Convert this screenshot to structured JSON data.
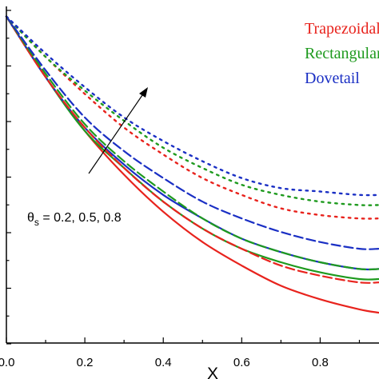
{
  "chart_data": {
    "type": "line",
    "xlabel": "X",
    "ylabel": "",
    "xlim": [
      0.0,
      0.95
    ],
    "ylim": [
      0.0,
      1.0
    ],
    "x_ticks": [
      "0.0",
      "0.2",
      "0.4",
      "0.6",
      "0.8"
    ],
    "x_tick_values": [
      0.0,
      0.2,
      0.4,
      0.6,
      0.8
    ],
    "y_tick_count": 7,
    "grid": false,
    "legend_position": "top-right",
    "legend": [
      {
        "label": "Trapezoidal",
        "color": "#e8231d"
      },
      {
        "label": "Rectangular",
        "color": "#1e9a1e"
      },
      {
        "label": "Dovetail",
        "color": "#1a2fc4"
      }
    ],
    "annotation": {
      "text_theta": "θ",
      "text_sub": "s",
      "text_rest": " = 0.2, 0.5, 0.8"
    },
    "x": [
      0.0,
      0.1,
      0.2,
      0.3,
      0.4,
      0.5,
      0.6,
      0.7,
      0.8,
      0.9,
      0.95
    ],
    "series": [
      {
        "shape": "Trapezoidal",
        "theta_s": 0.2,
        "style": "solid",
        "color": "#e8231d",
        "values": [
          0.97,
          0.79,
          0.63,
          0.5,
          0.39,
          0.3,
          0.23,
          0.17,
          0.13,
          0.1,
          0.09
        ]
      },
      {
        "shape": "Rectangular",
        "theta_s": 0.2,
        "style": "solid",
        "color": "#1e9a1e",
        "values": [
          0.97,
          0.79,
          0.63,
          0.52,
          0.42,
          0.34,
          0.28,
          0.24,
          0.21,
          0.19,
          0.19
        ]
      },
      {
        "shape": "Dovetail",
        "theta_s": 0.2,
        "style": "solid",
        "color": "#1a2fc4",
        "values": [
          0.97,
          0.79,
          0.64,
          0.53,
          0.44,
          0.37,
          0.31,
          0.27,
          0.24,
          0.22,
          0.22
        ]
      },
      {
        "shape": "Trapezoidal",
        "theta_s": 0.5,
        "style": "dashed",
        "color": "#e8231d",
        "values": [
          0.97,
          0.79,
          0.64,
          0.52,
          0.42,
          0.34,
          0.28,
          0.23,
          0.2,
          0.18,
          0.18
        ]
      },
      {
        "shape": "Rectangular",
        "theta_s": 0.5,
        "style": "dashed",
        "color": "#1e9a1e",
        "values": [
          0.97,
          0.8,
          0.65,
          0.54,
          0.45,
          0.37,
          0.31,
          0.27,
          0.24,
          0.22,
          0.22
        ]
      },
      {
        "shape": "Dovetail",
        "theta_s": 0.5,
        "style": "dashed",
        "color": "#1a2fc4",
        "values": [
          0.97,
          0.81,
          0.67,
          0.57,
          0.49,
          0.42,
          0.37,
          0.33,
          0.3,
          0.28,
          0.28
        ]
      },
      {
        "shape": "Trapezoidal",
        "theta_s": 0.8,
        "style": "dotted",
        "color": "#e8231d",
        "values": [
          0.97,
          0.85,
          0.74,
          0.64,
          0.56,
          0.49,
          0.44,
          0.4,
          0.38,
          0.37,
          0.37
        ]
      },
      {
        "shape": "Rectangular",
        "theta_s": 0.8,
        "style": "dotted",
        "color": "#1e9a1e",
        "values": [
          0.97,
          0.85,
          0.75,
          0.66,
          0.58,
          0.52,
          0.47,
          0.44,
          0.42,
          0.41,
          0.41
        ]
      },
      {
        "shape": "Dovetail",
        "theta_s": 0.8,
        "style": "dotted",
        "color": "#1a2fc4",
        "values": [
          0.97,
          0.86,
          0.76,
          0.67,
          0.6,
          0.54,
          0.49,
          0.46,
          0.45,
          0.44,
          0.44
        ]
      }
    ]
  }
}
